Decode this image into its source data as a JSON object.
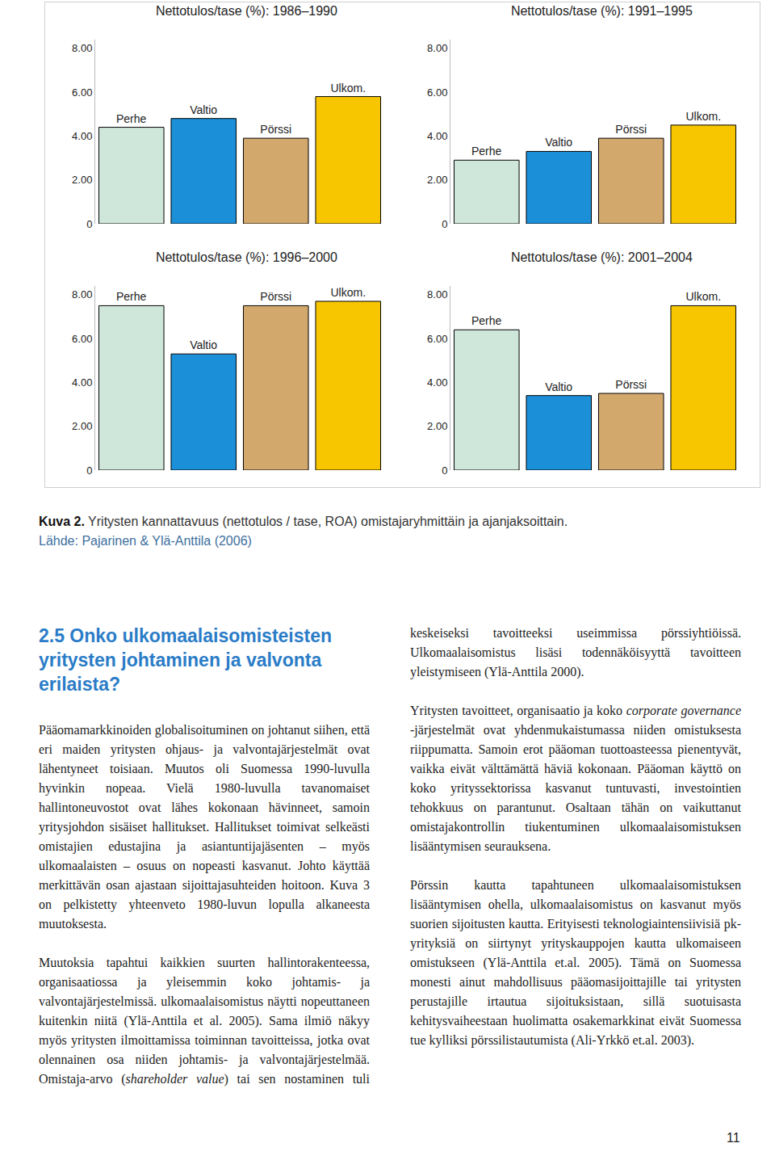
{
  "chart_data": [
    {
      "type": "bar",
      "title": "Nettotulos/tase (%): 1986–1990",
      "categories": [
        "Perhe",
        "Valtio",
        "Pörssi",
        "Ulkom."
      ],
      "values": [
        4.4,
        4.8,
        3.9,
        5.8
      ],
      "colors": [
        "#cfe7da",
        "#1b8fd8",
        "#d2a86c",
        "#f8c600"
      ],
      "ylim": [
        0,
        8.4
      ],
      "yticks": [
        0,
        {
          "value": 2,
          "label": "2.00"
        },
        {
          "value": 4,
          "label": "4.00"
        },
        {
          "value": 6,
          "label": "6.00"
        },
        {
          "value": 8,
          "label": "8.00"
        }
      ],
      "grid": false,
      "tick_labels": "y"
    },
    {
      "type": "bar",
      "title": "Nettotulos/tase (%): 1991–1995",
      "categories": [
        "Perhe",
        "Valtio",
        "Pörssi",
        "Ulkom."
      ],
      "values": [
        2.9,
        3.3,
        3.9,
        4.5
      ],
      "colors": [
        "#cfe7da",
        "#1b8fd8",
        "#d2a86c",
        "#f8c600"
      ],
      "ylim": [
        0,
        8.4
      ],
      "yticks": [
        0,
        {
          "value": 2,
          "label": "2.00"
        },
        {
          "value": 4,
          "label": "4.00"
        },
        {
          "value": 6,
          "label": "6.00"
        },
        {
          "value": 8,
          "label": "8.00"
        }
      ],
      "grid": false,
      "tick_labels": "y"
    },
    {
      "type": "bar",
      "title": "Nettotulos/tase (%): 1996–2000",
      "categories": [
        "Perhe",
        "Valtio",
        "Pörssi",
        "Ulkom."
      ],
      "values": [
        7.5,
        5.3,
        7.5,
        7.7
      ],
      "colors": [
        "#cfe7da",
        "#1b8fd8",
        "#d2a86c",
        "#f8c600"
      ],
      "ylim": [
        0,
        8.4
      ],
      "yticks": [
        0,
        {
          "value": 2,
          "label": "2.00"
        },
        {
          "value": 4,
          "label": "4.00"
        },
        {
          "value": 6,
          "label": "6.00"
        },
        {
          "value": 8,
          "label": "8.00"
        }
      ],
      "grid": false,
      "tick_labels": "y"
    },
    {
      "type": "bar",
      "title": "Nettotulos/tase (%): 2001–2004",
      "categories": [
        "Perhe",
        "Valtio",
        "Pörssi",
        "Ulkom."
      ],
      "values": [
        6.4,
        3.4,
        3.5,
        7.5
      ],
      "colors": [
        "#cfe7da",
        "#1b8fd8",
        "#d2a86c",
        "#f8c600"
      ],
      "ylim": [
        0,
        8.4
      ],
      "yticks": [
        0,
        {
          "value": 2,
          "label": "2.00"
        },
        {
          "value": 4,
          "label": "4.00"
        },
        {
          "value": 6,
          "label": "6.00"
        },
        {
          "value": 8,
          "label": "8.00"
        }
      ],
      "grid": false,
      "tick_labels": "y"
    }
  ],
  "caption": {
    "label": "Kuva 2.",
    "text": "Yritysten kannattavuus (nettotulos / tase, ROA) omistajaryhmittäin ja ajanjaksoittain.",
    "source": "Lähde: Pajarinen & Ylä-Anttila (2006)"
  },
  "section": {
    "heading": "2.5 Onko ulkomaalaisomisteisten yritysten johtaminen ja valvonta erilaista?",
    "paragraphs": [
      [
        {
          "text": "Pääomamarkkinoiden globalisoituminen on johtanut siihen, että eri maiden yritysten ohjaus- ja valvontajärjestelmät ovat lähentyneet toisiaan. Muutos oli Suomessa 1990-luvulla hyvinkin nopeaa. Vielä 1980-luvulla tavanomaiset hallintoneuvostot ovat lähes kokonaan hävinneet, samoin yritysjohdon sisäiset hallitukset. Hallitukset toimivat selkeästi omistajien edustajina ja asiantuntijajäsenten – myös ulkomaalaisten – osuus on nopeasti kasvanut. Johto käyttää merkittävän osan ajastaan sijoittajasuhteiden hoitoon. Kuva 3 on pelkistetty yhteenveto 1980-luvun lopulla alkaneesta muutoksesta.",
          "italic": false
        }
      ],
      [
        {
          "text": "Muutoksia tapahtui kaikkien suurten hallintorakenteessa, organisaatiossa ja yleisemmin koko johtamis- ja valvontajärjestelmissä. ulkomaalaisomistus näytti nopeuttaneen kuitenkin niitä (Ylä-Anttila et al. 2005). Sama ilmiö näkyy myös yritysten ilmoittamissa toiminnan tavoitteissa, jotka ovat olennainen osa niiden johtamis- ja valvontajärjestelmää. Omistaja-arvo (",
          "italic": false
        },
        {
          "text": "shareholder value",
          "italic": true
        },
        {
          "text": ") tai sen nostaminen tuli keskeiseksi tavoitteeksi useimmissa pörssiyhtiöissä. Ulkomaalaisomistus lisäsi todennäköisyyttä tavoitteen yleistymiseen (Ylä-Anttila 2000).",
          "italic": false
        }
      ],
      [
        {
          "text": "Yritysten tavoitteet, organisaatio ja koko ",
          "italic": false
        },
        {
          "text": "corporate governance",
          "italic": true
        },
        {
          "text": " -järjestelmät ovat yhdenmukaistumassa niiden omistuksesta riippumatta. Samoin erot pääoman tuottoasteessa pienentyvät, vaikka eivät välttämättä häviä kokonaan. Pääoman käyttö on koko yrityssektorissa kasvanut tuntuvasti, investointien tehokkuus on parantunut. Osaltaan tähän on vaikuttanut omistajakontrollin tiukentuminen ulkomaalaisomistuksen lisääntymisen seurauksena.",
          "italic": false
        }
      ],
      [
        {
          "text": "Pörssin kautta tapahtuneen ulkomaalaisomistuksen lisääntymisen ohella, ulkomaalaisomistus on kasvanut myös suorien sijoitusten kautta. Erityisesti teknologiaintensiivisiä pk-yrityksiä on siirtynyt yrityskauppojen kautta ulkomaiseen omistukseen (Ylä-Anttila et.al. 2005). Tämä on Suomessa monesti ainut mahdollisuus pääomasijoittajille tai yritysten perustajille irtautua sijoituksistaan, sillä suotuisasta kehitysvaiheestaan huolimatta osakemarkkinat eivät Suomessa tue kylliksi pörssilistautumista (Ali-Yrkkö et.al. 2003).",
          "italic": false
        }
      ]
    ]
  },
  "page_number": "11"
}
